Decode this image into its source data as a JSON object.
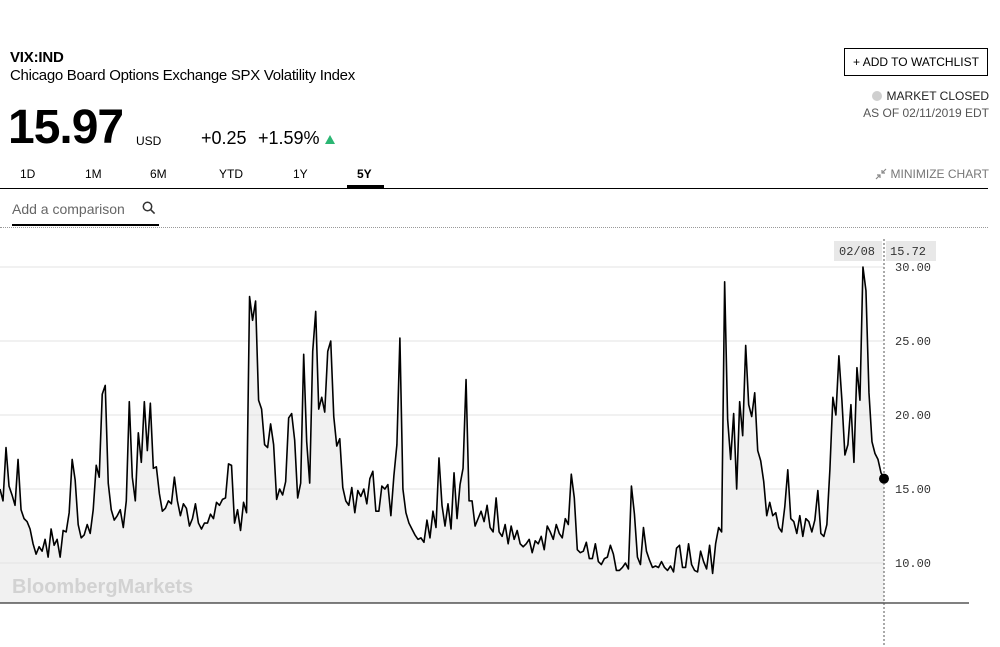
{
  "quote": {
    "ticker": "VIX:IND",
    "name": "Chicago Board Options Exchange SPX Volatility Index",
    "price": "15.97",
    "currency": "USD",
    "change": "+0.25",
    "change_pct": "+1.59%",
    "direction": "up",
    "up_color": "#2bb673"
  },
  "actions": {
    "watchlist_label": "+ ADD TO WATCHLIST",
    "minimize_label": "MINIMIZE CHART"
  },
  "status": {
    "market": "MARKET CLOSED",
    "as_of": "AS OF 02/11/2019 EDT"
  },
  "tabs": [
    {
      "label": "1D",
      "active": false
    },
    {
      "label": "1M",
      "active": false
    },
    {
      "label": "6M",
      "active": false
    },
    {
      "label": "YTD",
      "active": false
    },
    {
      "label": "1Y",
      "active": false
    },
    {
      "label": "5Y",
      "active": true
    }
  ],
  "compare": {
    "placeholder": "Add a comparison"
  },
  "icons": {
    "search": "search-icon",
    "minimize": "minimize-arrows-icon",
    "status": "status-dot-icon"
  },
  "chart_data": {
    "type": "area",
    "title": "",
    "xlabel": "",
    "ylabel": "",
    "watermark": "BloombergMarkets",
    "x_range": [
      "02/2014",
      "02/08/2019"
    ],
    "ylim": [
      7.3,
      32.5
    ],
    "yticks": [
      10,
      15,
      20,
      25,
      30
    ],
    "ytick_labels": [
      "10.00",
      "15.00",
      "20.00",
      "25.00",
      "30.00"
    ],
    "grid": "horizontal",
    "line_color": "#000000",
    "fill_color": "#f1f1f1",
    "cursor": {
      "date": "02/08",
      "value": "15.72"
    },
    "series": [
      {
        "values": [
          15.0,
          14.2,
          17.8,
          15.2,
          14.6,
          13.9,
          17.0,
          13.6,
          13.0,
          12.8,
          12.3,
          11.3,
          10.6,
          11.1,
          10.8,
          11.6,
          10.4,
          12.3,
          11.2,
          11.6,
          10.4,
          12.2,
          12.1,
          13.4,
          17.0,
          15.6,
          12.6,
          11.7,
          11.9,
          12.6,
          12.0,
          13.6,
          16.6,
          15.8,
          21.4,
          22.0,
          15.4,
          13.6,
          12.9,
          13.2,
          13.6,
          12.4,
          14.2,
          20.9,
          15.8,
          14.2,
          18.8,
          16.8,
          20.9,
          17.6,
          20.8,
          16.4,
          16.5,
          14.7,
          13.5,
          13.7,
          14.2,
          14.0,
          15.8,
          14.2,
          13.2,
          14.0,
          13.7,
          12.5,
          13.0,
          14.0,
          12.7,
          12.3,
          12.7,
          12.7,
          13.3,
          13.0,
          14.1,
          13.9,
          14.3,
          14.4,
          16.7,
          16.6,
          12.7,
          13.6,
          12.2,
          14.1,
          13.4,
          28.0,
          26.4,
          27.7,
          21.0,
          20.4,
          18.0,
          17.8,
          19.4,
          18.0,
          14.3,
          15.0,
          14.6,
          15.5,
          19.8,
          20.1,
          18.3,
          14.4,
          15.4,
          24.1,
          18.2,
          15.4,
          24.3,
          27.0,
          20.4,
          21.2,
          20.2,
          24.3,
          25.0,
          19.9,
          17.9,
          18.4,
          15.1,
          14.2,
          13.9,
          15.1,
          13.4,
          14.9,
          14.5,
          15.0,
          14.0,
          15.7,
          16.2,
          13.5,
          13.5,
          15.2,
          15.0,
          15.3,
          13.2,
          15.9,
          18.0,
          25.2,
          15.0,
          13.4,
          12.7,
          12.3,
          11.9,
          11.6,
          11.7,
          11.4,
          12.9,
          11.7,
          13.5,
          12.4,
          17.1,
          13.9,
          12.5,
          14.0,
          12.3,
          16.1,
          13.0,
          15.3,
          16.4,
          22.4,
          14.2,
          14.2,
          12.5,
          13.0,
          13.5,
          12.8,
          13.9,
          12.4,
          12.1,
          14.4,
          12.1,
          11.8,
          12.6,
          11.3,
          12.5,
          11.6,
          12.2,
          11.3,
          11.1,
          11.3,
          11.6,
          10.7,
          11.5,
          11.3,
          11.8,
          10.9,
          12.5,
          12.1,
          11.6,
          12.6,
          12.0,
          11.7,
          13.0,
          12.6,
          16.0,
          14.4,
          10.9,
          10.7,
          10.8,
          11.4,
          10.3,
          10.3,
          11.3,
          10.1,
          9.9,
          10.3,
          10.4,
          11.2,
          10.6,
          9.5,
          9.5,
          9.7,
          10.0,
          9.6,
          15.2,
          13.3,
          10.4,
          9.9,
          12.4,
          10.8,
          10.2,
          9.7,
          9.8,
          9.7,
          10.1,
          9.7,
          9.5,
          9.8,
          9.4,
          11.0,
          11.2,
          9.7,
          9.7,
          11.3,
          9.9,
          9.5,
          9.4,
          10.8,
          10.1,
          9.6,
          11.2,
          9.3,
          11.3,
          12.4,
          12.1,
          29.0,
          19.7,
          17.0,
          20.1,
          15.0,
          20.9,
          18.6,
          24.7,
          20.7,
          19.9,
          21.5,
          17.6,
          16.9,
          15.5,
          13.2,
          14.1,
          13.2,
          13.4,
          12.4,
          12.1,
          13.8,
          16.3,
          13.0,
          12.8,
          12.0,
          13.2,
          11.8,
          13.0,
          12.8,
          12.1,
          12.9,
          14.9,
          12.0,
          11.8,
          12.6,
          16.3,
          21.2,
          20.0,
          24.0,
          21.0,
          17.3,
          18.0,
          20.7,
          16.8,
          23.2,
          21.0,
          30.0,
          28.4,
          21.5,
          18.2,
          17.4,
          17.0,
          16.1,
          15.7
        ]
      }
    ]
  }
}
